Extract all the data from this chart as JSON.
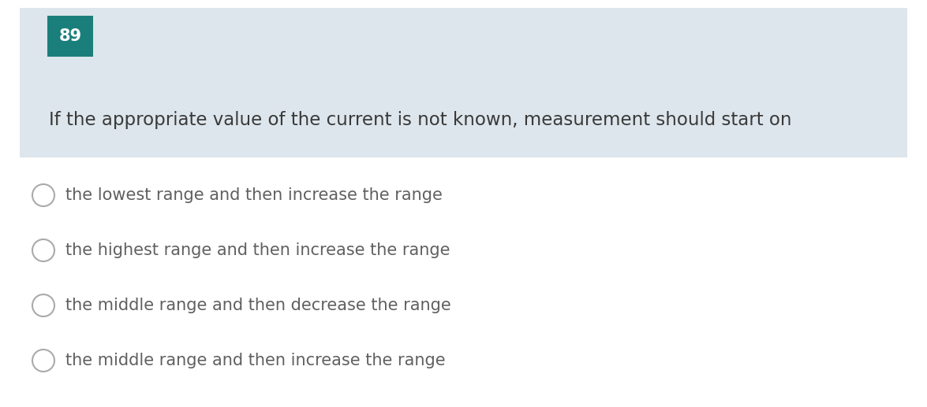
{
  "question_number": "89",
  "question_number_bg": "#1a7f7a",
  "question_number_color": "#ffffff",
  "question_number_fontsize": 15,
  "header_bg": "#dde6ec",
  "question_text": "If the appropriate value of the current is not known, measurement should start on",
  "question_fontsize": 16.5,
  "question_text_color": "#3a3a3a",
  "options": [
    "the lowest range and then increase the range",
    "the highest range and then increase the range",
    "the middle range and then decrease the range",
    "the middle range and then increase the range"
  ],
  "option_fontsize": 15,
  "option_text_color": "#606060",
  "circle_edge_color": "#aaaaaa",
  "bg_color": "#ffffff",
  "fig_width": 11.75,
  "fig_height": 5.17,
  "dpi": 100
}
